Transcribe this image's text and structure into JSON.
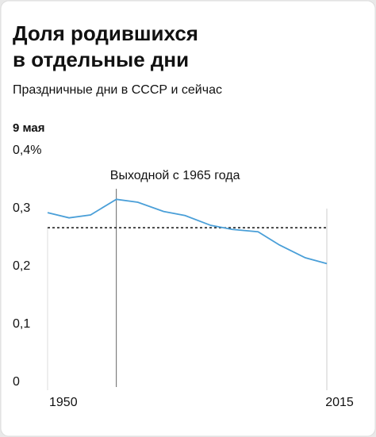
{
  "chart_data": {
    "type": "line",
    "title": "Доля родившихся в отдельные дни",
    "title_lines": [
      "Доля родившихся",
      "в отдельные дни"
    ],
    "subtitle": "Праздничные дни в СССР и сейчас",
    "panel_title": "9 мая",
    "annotation": {
      "text": "Выходной с 1965 года",
      "x": 1966
    },
    "reference_line": 0.267,
    "x": [
      1950,
      1955,
      1960,
      1966,
      1971,
      1977,
      1982,
      1988,
      1993,
      1999,
      2004,
      2010,
      2015
    ],
    "series": [
      {
        "name": "9 мая",
        "color": "#4a9fd8",
        "values": [
          0.293,
          0.284,
          0.289,
          0.316,
          0.311,
          0.295,
          0.288,
          0.271,
          0.264,
          0.26,
          0.237,
          0.215,
          0.205
        ]
      }
    ],
    "xlim": [
      1950,
      2015
    ],
    "xticks": [
      1950,
      2015
    ],
    "ylim": [
      0,
      0.4
    ],
    "yticks": [
      {
        "value": 0,
        "label": "0"
      },
      {
        "value": 0.1,
        "label": "0,1"
      },
      {
        "value": 0.2,
        "label": "0,2"
      },
      {
        "value": 0.3,
        "label": "0,3"
      },
      {
        "value": 0.4,
        "label": "0,4%"
      }
    ]
  }
}
